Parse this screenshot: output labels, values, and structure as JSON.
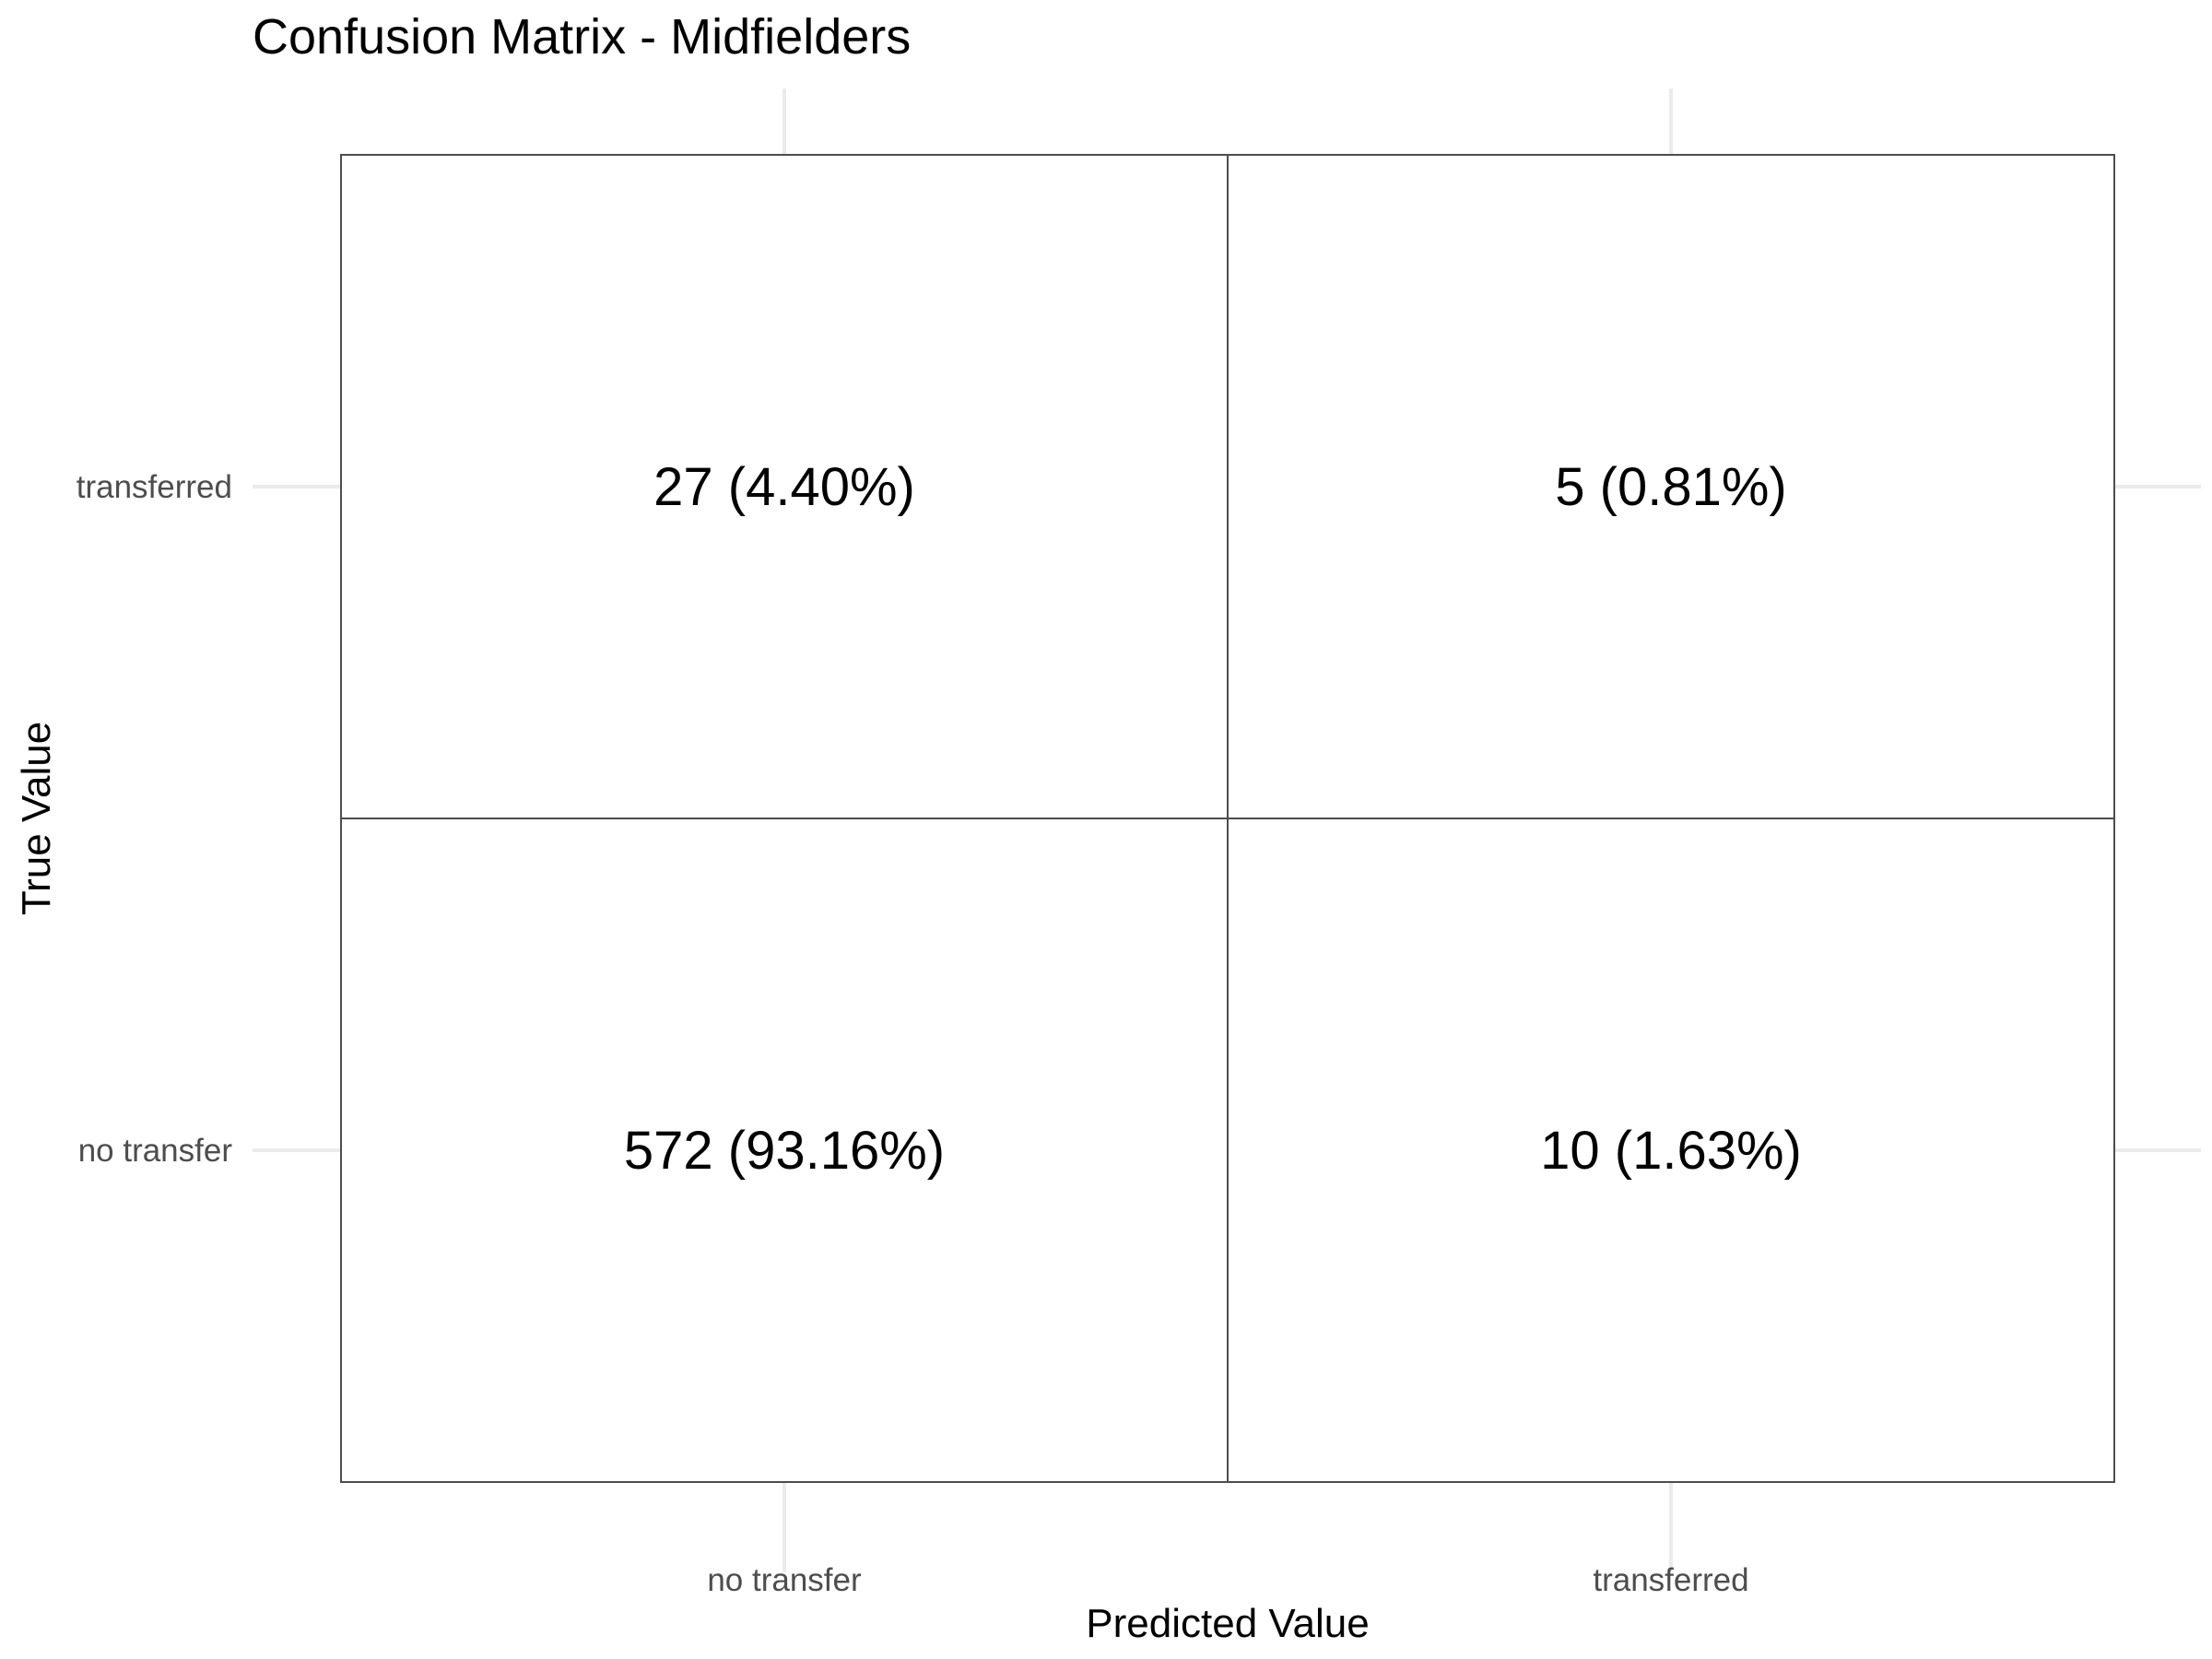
{
  "chart_data": {
    "type": "heatmap",
    "title": "Confusion Matrix - Midfielders",
    "xlabel": "Predicted Value",
    "ylabel": "True Value",
    "x_categories": [
      "no transfer",
      "transferred"
    ],
    "y_categories": [
      "no transfer",
      "transferred"
    ],
    "grid": true,
    "cells": [
      {
        "predicted": "no transfer",
        "true": "transferred",
        "count": 27,
        "percent": 4.4,
        "label": "27 (4.40%)"
      },
      {
        "predicted": "transferred",
        "true": "transferred",
        "count": 5,
        "percent": 0.81,
        "label": "5 (0.81%)"
      },
      {
        "predicted": "no transfer",
        "true": "no transfer",
        "count": 572,
        "percent": 93.16,
        "label": "572 (93.16%)"
      },
      {
        "predicted": "transferred",
        "true": "no transfer",
        "count": 10,
        "percent": 1.63,
        "label": "10 (1.63%)"
      }
    ],
    "colors": {
      "cell_fill": "#ffffff",
      "cell_border": "#4d4d4d",
      "grid": "#ebebeb",
      "tick_text": "#4d4d4d",
      "text": "#000000"
    }
  }
}
